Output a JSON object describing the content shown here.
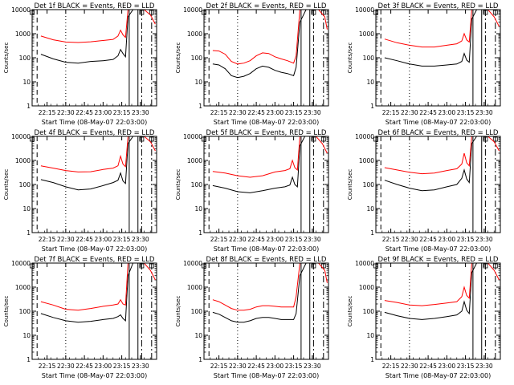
{
  "colors": {
    "background": "#ffffff",
    "events": "#000000",
    "lld": "#ff0000",
    "axes": "#000000"
  },
  "common": {
    "ylabel": "Counts/sec",
    "xlabel": "Start Time (08-May-07 22:03:00)",
    "yticks": [
      "1",
      "10",
      "100",
      "1000",
      "10000"
    ],
    "xticks": [
      "22:15",
      "22:30",
      "22:45",
      "23:00",
      "23:15",
      "23:30"
    ]
  },
  "chart_data": [
    {
      "type": "line",
      "title": "Det 1f BLACK = Events, RED = LLD",
      "xlabel": "Start Time (08-May-07 22:03:00)",
      "ylabel": "Counts/sec",
      "xlim": [
        "22:03",
        "23:43"
      ],
      "ylim": [
        1,
        10000
      ],
      "yscale": "log",
      "grid": false,
      "x": [
        "22:10",
        "22:20",
        "22:30",
        "22:40",
        "22:50",
        "23:00",
        "23:08",
        "23:12",
        "23:14",
        "23:16",
        "23:18",
        "23:20",
        "23:24",
        "23:28",
        "23:33",
        "23:38",
        "23:42"
      ],
      "series": [
        {
          "name": "BLACK = Events",
          "values": [
            140,
            90,
            65,
            60,
            70,
            75,
            85,
            120,
            220,
            150,
            110,
            5000,
            10000,
            10000,
            10000,
            10000,
            10000
          ]
        },
        {
          "name": "RED = LLD",
          "values": [
            800,
            560,
            450,
            430,
            460,
            520,
            580,
            800,
            1400,
            900,
            700,
            10000,
            10000,
            10000,
            10000,
            6000,
            2500
          ]
        }
      ]
    },
    {
      "type": "line",
      "title": "Det 2f BLACK = Events, RED = LLD",
      "xlabel": "Start Time (08-May-07 22:03:00)",
      "ylabel": "Counts/sec",
      "xlim": [
        "22:03",
        "23:43"
      ],
      "ylim": [
        1,
        10000
      ],
      "yscale": "log",
      "grid": false,
      "x": [
        "22:10",
        "22:15",
        "22:20",
        "22:25",
        "22:30",
        "22:35",
        "22:40",
        "22:45",
        "22:50",
        "22:55",
        "23:00",
        "23:05",
        "23:10",
        "23:15",
        "23:17",
        "23:20",
        "23:25",
        "23:30",
        "23:35",
        "23:40",
        "23:42"
      ],
      "series": [
        {
          "name": "BLACK = Events",
          "values": [
            55,
            50,
            35,
            18,
            15,
            17,
            22,
            35,
            45,
            40,
            30,
            25,
            22,
            18,
            40,
            3000,
            10000,
            10000,
            10000,
            10000,
            10000
          ]
        },
        {
          "name": "RED = LLD",
          "values": [
            200,
            190,
            140,
            70,
            55,
            60,
            75,
            120,
            160,
            150,
            110,
            90,
            75,
            60,
            120,
            10000,
            10000,
            10000,
            10000,
            5000,
            1500
          ]
        }
      ]
    },
    {
      "type": "line",
      "title": "Det 3f BLACK = Events, RED = LLD",
      "xlabel": "Start Time (08-May-07 22:03:00)",
      "ylabel": "Counts/sec",
      "xlim": [
        "22:03",
        "23:43"
      ],
      "ylim": [
        1,
        10000
      ],
      "yscale": "log",
      "grid": false,
      "x": [
        "22:10",
        "22:20",
        "22:30",
        "22:40",
        "22:50",
        "23:00",
        "23:08",
        "23:12",
        "23:14",
        "23:16",
        "23:18",
        "23:20",
        "23:24",
        "23:28",
        "23:33",
        "23:38",
        "23:42"
      ],
      "series": [
        {
          "name": "BLACK = Events",
          "values": [
            100,
            75,
            55,
            45,
            45,
            50,
            55,
            70,
            150,
            80,
            65,
            4000,
            10000,
            10000,
            10000,
            10000,
            10000
          ]
        },
        {
          "name": "RED = LLD",
          "values": [
            600,
            420,
            330,
            280,
            280,
            330,
            380,
            500,
            1000,
            550,
            450,
            10000,
            10000,
            10000,
            10000,
            5000,
            2000
          ]
        }
      ]
    },
    {
      "type": "line",
      "title": "Det 4f BLACK = Events, RED = LLD",
      "xlabel": "Start Time (08-May-07 22:03:00)",
      "ylabel": "Counts/sec",
      "xlim": [
        "22:03",
        "23:43"
      ],
      "ylim": [
        1,
        10000
      ],
      "yscale": "log",
      "grid": false,
      "x": [
        "22:10",
        "22:20",
        "22:30",
        "22:40",
        "22:50",
        "23:00",
        "23:08",
        "23:12",
        "23:14",
        "23:16",
        "23:18",
        "23:20",
        "23:24",
        "23:28",
        "23:33",
        "23:38",
        "23:42"
      ],
      "series": [
        {
          "name": "BLACK = Events",
          "values": [
            160,
            120,
            80,
            60,
            65,
            90,
            120,
            150,
            300,
            140,
            110,
            5000,
            10000,
            10000,
            10000,
            10000,
            10000
          ]
        },
        {
          "name": "RED = LLD",
          "values": [
            600,
            480,
            380,
            330,
            340,
            420,
            480,
            600,
            1500,
            700,
            550,
            10000,
            10000,
            10000,
            10000,
            6000,
            2500
          ]
        }
      ]
    },
    {
      "type": "line",
      "title": "Det 5f BLACK = Events, RED = LLD",
      "xlabel": "Start Time (08-May-07 22:03:00)",
      "ylabel": "Counts/sec",
      "xlim": [
        "22:03",
        "23:43"
      ],
      "ylim": [
        1,
        10000
      ],
      "yscale": "log",
      "grid": false,
      "x": [
        "22:10",
        "22:20",
        "22:30",
        "22:40",
        "22:50",
        "23:00",
        "23:08",
        "23:12",
        "23:14",
        "23:16",
        "23:18",
        "23:20",
        "23:24",
        "23:28",
        "23:33",
        "23:38",
        "23:42"
      ],
      "series": [
        {
          "name": "BLACK = Events",
          "values": [
            90,
            70,
            50,
            45,
            55,
            70,
            80,
            95,
            200,
            100,
            80,
            4000,
            10000,
            10000,
            10000,
            10000,
            10000
          ]
        },
        {
          "name": "RED = LLD",
          "values": [
            350,
            300,
            230,
            200,
            230,
            330,
            380,
            450,
            1000,
            500,
            400,
            10000,
            10000,
            10000,
            10000,
            5000,
            2000
          ]
        }
      ]
    },
    {
      "type": "line",
      "title": "Det 6f BLACK = Events, RED = LLD",
      "xlabel": "Start Time (08-May-07 22:03:00)",
      "ylabel": "Counts/sec",
      "xlim": [
        "22:03",
        "23:43"
      ],
      "ylim": [
        1,
        10000
      ],
      "yscale": "log",
      "grid": false,
      "x": [
        "22:10",
        "22:20",
        "22:30",
        "22:40",
        "22:50",
        "23:00",
        "23:08",
        "23:12",
        "23:14",
        "23:16",
        "23:18",
        "23:20",
        "23:24",
        "23:28",
        "23:33",
        "23:38",
        "23:42"
      ],
      "series": [
        {
          "name": "BLACK = Events",
          "values": [
            150,
            100,
            70,
            55,
            60,
            80,
            100,
            180,
            400,
            170,
            120,
            5000,
            10000,
            10000,
            10000,
            10000,
            10000
          ]
        },
        {
          "name": "RED = LLD",
          "values": [
            500,
            400,
            320,
            280,
            300,
            380,
            450,
            700,
            2000,
            800,
            600,
            10000,
            10000,
            10000,
            10000,
            6000,
            2500
          ]
        }
      ]
    },
    {
      "type": "line",
      "title": "Det 7f BLACK = Events, RED = LLD",
      "xlabel": "Start Time (08-May-07 22:03:00)",
      "ylabel": "Counts/sec",
      "xlim": [
        "22:03",
        "23:43"
      ],
      "ylim": [
        1,
        10000
      ],
      "yscale": "log",
      "grid": false,
      "x": [
        "22:10",
        "22:20",
        "22:30",
        "22:40",
        "22:50",
        "23:00",
        "23:08",
        "23:12",
        "23:14",
        "23:16",
        "23:18",
        "23:20",
        "23:24",
        "23:28",
        "23:33",
        "23:38",
        "23:42"
      ],
      "series": [
        {
          "name": "BLACK = Events",
          "values": [
            80,
            55,
            40,
            35,
            38,
            45,
            50,
            60,
            70,
            50,
            40,
            3000,
            10000,
            10000,
            10000,
            10000,
            10000
          ]
        },
        {
          "name": "RED = LLD",
          "values": [
            250,
            180,
            120,
            110,
            130,
            160,
            180,
            200,
            300,
            200,
            180,
            10000,
            10000,
            10000,
            10000,
            5000,
            2000
          ]
        }
      ]
    },
    {
      "type": "line",
      "title": "Det 8f BLACK = Events, RED = LLD",
      "xlabel": "Start Time (08-May-07 22:03:00)",
      "ylabel": "Counts/sec",
      "xlim": [
        "22:03",
        "23:43"
      ],
      "ylim": [
        1,
        10000
      ],
      "yscale": "log",
      "grid": false,
      "x": [
        "22:10",
        "22:15",
        "22:20",
        "22:25",
        "22:30",
        "22:35",
        "22:40",
        "22:45",
        "22:50",
        "22:55",
        "23:00",
        "23:05",
        "23:10",
        "23:15",
        "23:17",
        "23:20",
        "23:25",
        "23:30",
        "23:35",
        "23:40",
        "23:42"
      ],
      "series": [
        {
          "name": "BLACK = Events",
          "values": [
            90,
            75,
            55,
            40,
            35,
            35,
            40,
            50,
            55,
            55,
            50,
            45,
            45,
            45,
            80,
            3000,
            10000,
            10000,
            10000,
            10000,
            10000
          ]
        },
        {
          "name": "RED = LLD",
          "values": [
            300,
            250,
            180,
            130,
            110,
            110,
            120,
            150,
            170,
            170,
            160,
            150,
            150,
            150,
            400,
            10000,
            10000,
            10000,
            10000,
            5000,
            1500
          ]
        }
      ]
    },
    {
      "type": "line",
      "title": "Det 9f BLACK = Events, RED = LLD",
      "xlabel": "Start Time (08-May-07 22:03:00)",
      "ylabel": "Counts/sec",
      "xlim": [
        "22:03",
        "23:43"
      ],
      "ylim": [
        1,
        10000
      ],
      "yscale": "log",
      "grid": false,
      "x": [
        "22:10",
        "22:20",
        "22:30",
        "22:40",
        "22:50",
        "23:00",
        "23:08",
        "23:12",
        "23:14",
        "23:16",
        "23:18",
        "23:20",
        "23:24",
        "23:28",
        "23:33",
        "23:38",
        "23:42"
      ],
      "series": [
        {
          "name": "BLACK = Events",
          "values": [
            90,
            65,
            50,
            45,
            50,
            60,
            70,
            100,
            250,
            110,
            80,
            4000,
            10000,
            10000,
            10000,
            10000,
            10000
          ]
        },
        {
          "name": "RED = LLD",
          "values": [
            280,
            230,
            180,
            170,
            190,
            220,
            250,
            400,
            1000,
            450,
            350,
            10000,
            10000,
            10000,
            10000,
            5000,
            2000
          ]
        }
      ]
    }
  ]
}
